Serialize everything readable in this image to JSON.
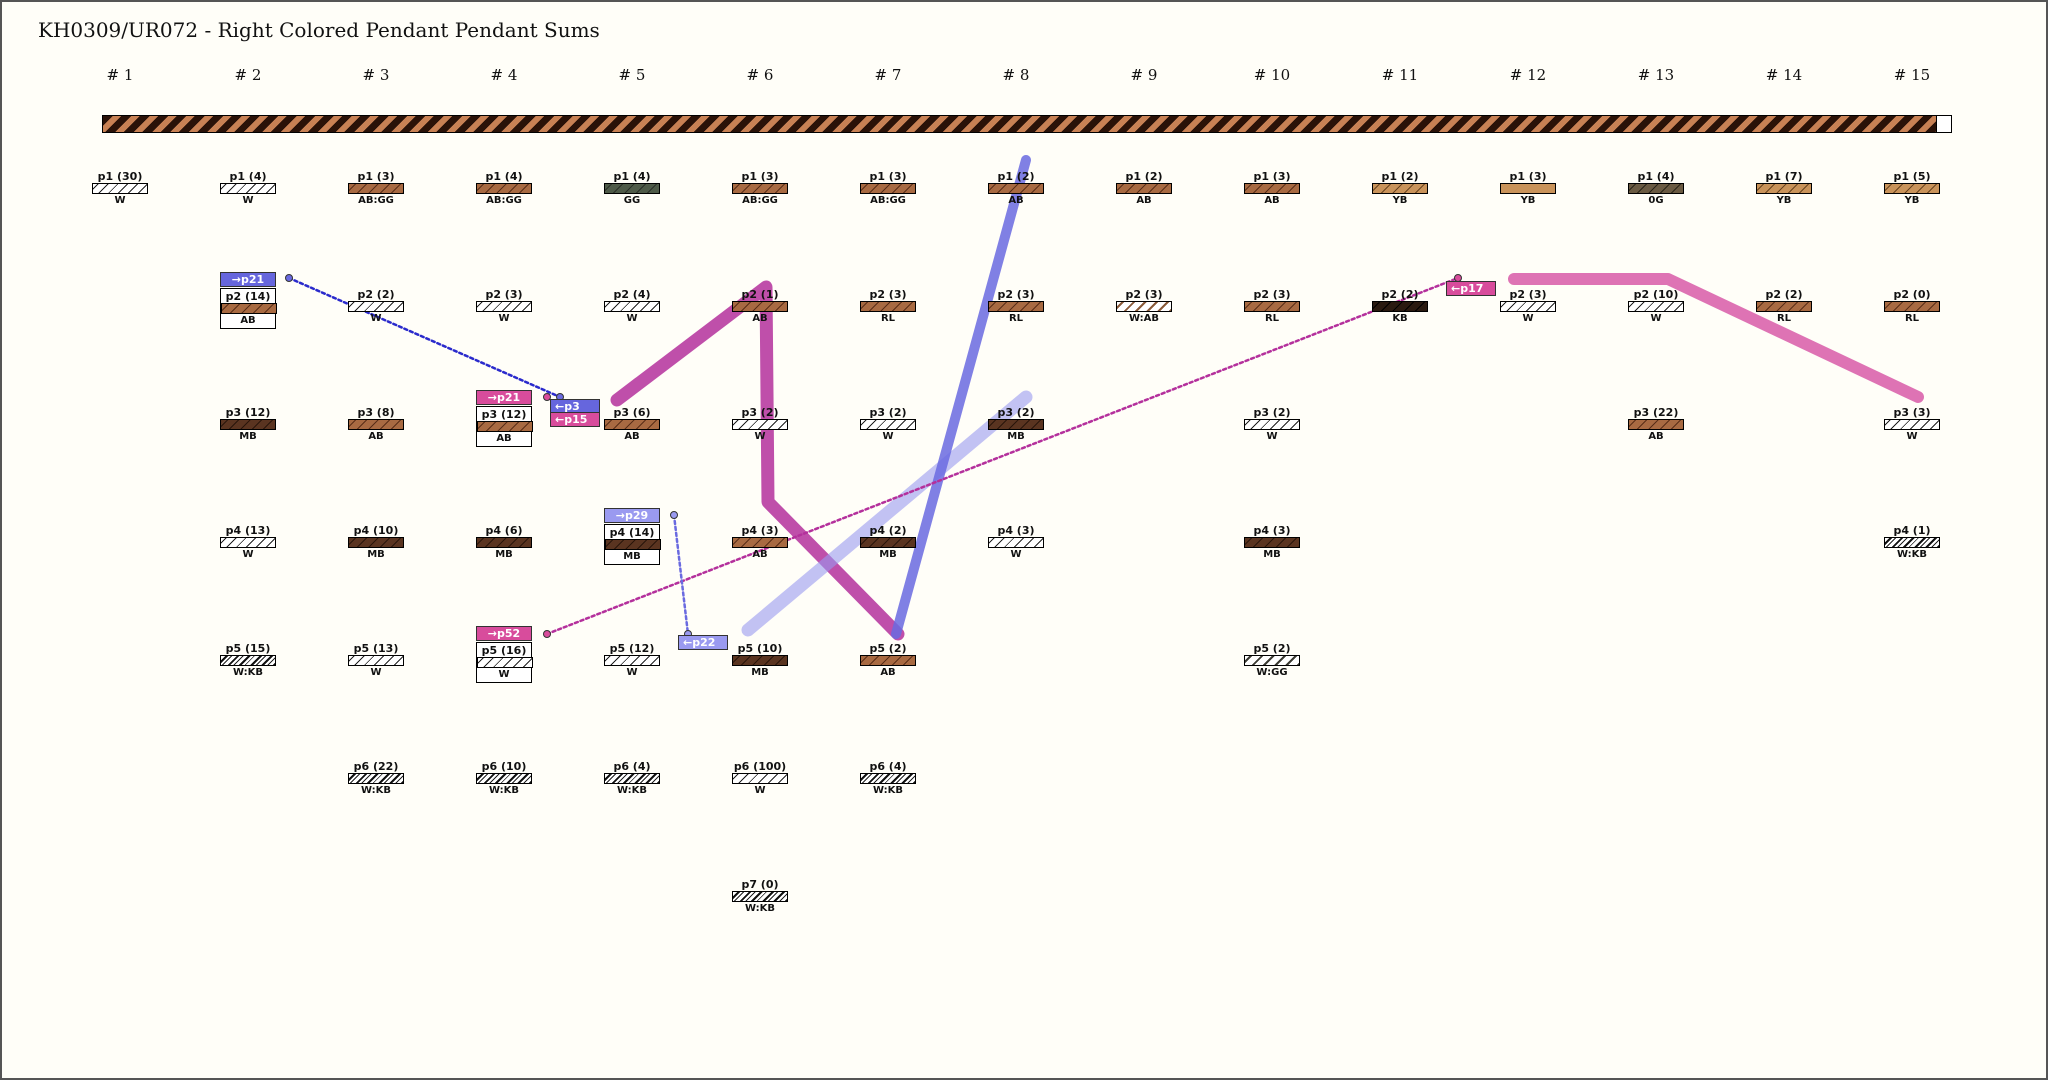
{
  "title": "KH0309/UR072 - Right Colored Pendant Pendant Sums",
  "columns": [
    "# 1",
    "# 2",
    "# 3",
    "# 4",
    "# 5",
    "# 6",
    "# 7",
    "# 8",
    "# 9",
    "# 10",
    "# 11",
    "# 12",
    "# 13",
    "# 14",
    "# 15"
  ],
  "pendants": [
    {
      "col": 1,
      "row": 1,
      "label": "p1 (30)",
      "code": "W",
      "pattern": "white"
    },
    {
      "col": 2,
      "row": 1,
      "label": "p1 (4)",
      "code": "W",
      "pattern": "white"
    },
    {
      "col": 2,
      "row": 2,
      "label": "p2 (14)",
      "code": "AB",
      "pattern": "ab",
      "boxed": true
    },
    {
      "col": 2,
      "row": 3,
      "label": "p3 (12)",
      "code": "MB",
      "pattern": "mb"
    },
    {
      "col": 2,
      "row": 4,
      "label": "p4 (13)",
      "code": "W",
      "pattern": "white"
    },
    {
      "col": 2,
      "row": 5,
      "label": "p5 (15)",
      "code": "W:KB",
      "pattern": "wkb"
    },
    {
      "col": 3,
      "row": 1,
      "label": "p1 (3)",
      "code": "AB:GG",
      "pattern": "ab"
    },
    {
      "col": 3,
      "row": 2,
      "label": "p2 (2)",
      "code": "W",
      "pattern": "white"
    },
    {
      "col": 3,
      "row": 3,
      "label": "p3 (8)",
      "code": "AB",
      "pattern": "ab"
    },
    {
      "col": 3,
      "row": 4,
      "label": "p4 (10)",
      "code": "MB",
      "pattern": "mb"
    },
    {
      "col": 3,
      "row": 5,
      "label": "p5 (13)",
      "code": "W",
      "pattern": "white"
    },
    {
      "col": 3,
      "row": 6,
      "label": "p6 (22)",
      "code": "W:KB",
      "pattern": "wkb"
    },
    {
      "col": 4,
      "row": 1,
      "label": "p1 (4)",
      "code": "AB:GG",
      "pattern": "ab"
    },
    {
      "col": 4,
      "row": 2,
      "label": "p2 (3)",
      "code": "W",
      "pattern": "white"
    },
    {
      "col": 4,
      "row": 3,
      "label": "p3 (12)",
      "code": "AB",
      "pattern": "ab",
      "boxed": true
    },
    {
      "col": 4,
      "row": 4,
      "label": "p4 (6)",
      "code": "MB",
      "pattern": "mb"
    },
    {
      "col": 4,
      "row": 5,
      "label": "p5 (16)",
      "code": "W",
      "pattern": "white",
      "boxed": true
    },
    {
      "col": 4,
      "row": 6,
      "label": "p6 (10)",
      "code": "W:KB",
      "pattern": "wkb"
    },
    {
      "col": 5,
      "row": 1,
      "label": "p1 (4)",
      "code": "GG",
      "pattern": "gg"
    },
    {
      "col": 5,
      "row": 2,
      "label": "p2 (4)",
      "code": "W",
      "pattern": "white"
    },
    {
      "col": 5,
      "row": 3,
      "label": "p3 (6)",
      "code": "AB",
      "pattern": "ab"
    },
    {
      "col": 5,
      "row": 4,
      "label": "p4 (14)",
      "code": "MB",
      "pattern": "mb",
      "boxed": true
    },
    {
      "col": 5,
      "row": 5,
      "label": "p5 (12)",
      "code": "W",
      "pattern": "white"
    },
    {
      "col": 5,
      "row": 6,
      "label": "p6 (4)",
      "code": "W:KB",
      "pattern": "wkb"
    },
    {
      "col": 6,
      "row": 1,
      "label": "p1 (3)",
      "code": "AB:GG",
      "pattern": "ab"
    },
    {
      "col": 6,
      "row": 2,
      "label": "p2 (1)",
      "code": "AB",
      "pattern": "ab"
    },
    {
      "col": 6,
      "row": 3,
      "label": "p3 (2)",
      "code": "W",
      "pattern": "white"
    },
    {
      "col": 6,
      "row": 4,
      "label": "p4 (3)",
      "code": "AB",
      "pattern": "ab"
    },
    {
      "col": 6,
      "row": 5,
      "label": "p5 (10)",
      "code": "MB",
      "pattern": "mb"
    },
    {
      "col": 6,
      "row": 6,
      "label": "p6 (100)",
      "code": "W",
      "pattern": "white"
    },
    {
      "col": 6,
      "row": 7,
      "label": "p7 (0)",
      "code": "W:KB",
      "pattern": "wkb"
    },
    {
      "col": 7,
      "row": 1,
      "label": "p1 (3)",
      "code": "AB:GG",
      "pattern": "ab"
    },
    {
      "col": 7,
      "row": 2,
      "label": "p2 (3)",
      "code": "RL",
      "pattern": "ab"
    },
    {
      "col": 7,
      "row": 3,
      "label": "p3 (2)",
      "code": "W",
      "pattern": "white"
    },
    {
      "col": 7,
      "row": 4,
      "label": "p4 (2)",
      "code": "MB",
      "pattern": "mb"
    },
    {
      "col": 7,
      "row": 5,
      "label": "p5 (2)",
      "code": "AB",
      "pattern": "ab"
    },
    {
      "col": 7,
      "row": 6,
      "label": "p6 (4)",
      "code": "W:KB",
      "pattern": "wkb"
    },
    {
      "col": 8,
      "row": 1,
      "label": "p1 (2)",
      "code": "AB",
      "pattern": "ab"
    },
    {
      "col": 8,
      "row": 2,
      "label": "p2 (3)",
      "code": "RL",
      "pattern": "ab"
    },
    {
      "col": 8,
      "row": 3,
      "label": "p3 (2)",
      "code": "MB",
      "pattern": "mb"
    },
    {
      "col": 8,
      "row": 4,
      "label": "p4 (3)",
      "code": "W",
      "pattern": "white"
    },
    {
      "col": 9,
      "row": 1,
      "label": "p1 (2)",
      "code": "AB",
      "pattern": "ab"
    },
    {
      "col": 9,
      "row": 2,
      "label": "p2 (3)",
      "code": "W:AB",
      "pattern": "wab"
    },
    {
      "col": 10,
      "row": 1,
      "label": "p1 (3)",
      "code": "AB",
      "pattern": "ab"
    },
    {
      "col": 10,
      "row": 2,
      "label": "p2 (3)",
      "code": "RL",
      "pattern": "ab"
    },
    {
      "col": 10,
      "row": 3,
      "label": "p3 (2)",
      "code": "W",
      "pattern": "white"
    },
    {
      "col": 10,
      "row": 4,
      "label": "p4 (3)",
      "code": "MB",
      "pattern": "mb"
    },
    {
      "col": 10,
      "row": 5,
      "label": "p5 (2)",
      "code": "W:GG",
      "pattern": "wgg"
    },
    {
      "col": 11,
      "row": 1,
      "label": "p1 (2)",
      "code": "YB",
      "pattern": "yb"
    },
    {
      "col": 11,
      "row": 2,
      "label": "p2 (2)",
      "code": "KB",
      "pattern": "kb"
    },
    {
      "col": 12,
      "row": 1,
      "label": "p1 (3)",
      "code": "YB",
      "pattern": "ybsolid"
    },
    {
      "col": 12,
      "row": 2,
      "label": "p2 (3)",
      "code": "W",
      "pattern": "white"
    },
    {
      "col": 13,
      "row": 1,
      "label": "p1 (4)",
      "code": "0G",
      "pattern": "og"
    },
    {
      "col": 13,
      "row": 2,
      "label": "p2 (10)",
      "code": "W",
      "pattern": "white"
    },
    {
      "col": 13,
      "row": 3,
      "label": "p3 (22)",
      "code": "AB",
      "pattern": "ab"
    },
    {
      "col": 14,
      "row": 1,
      "label": "p1 (7)",
      "code": "YB",
      "pattern": "yb"
    },
    {
      "col": 14,
      "row": 2,
      "label": "p2 (2)",
      "code": "RL",
      "pattern": "ab"
    },
    {
      "col": 15,
      "row": 1,
      "label": "p1 (5)",
      "code": "YB",
      "pattern": "yb"
    },
    {
      "col": 15,
      "row": 2,
      "label": "p2 (0)",
      "code": "RL",
      "pattern": "ab"
    },
    {
      "col": 15,
      "row": 3,
      "label": "p3 (3)",
      "code": "W",
      "pattern": "white"
    },
    {
      "col": 15,
      "row": 4,
      "label": "p4 (1)",
      "code": "W:KB",
      "pattern": "wkb"
    }
  ],
  "tags": [
    {
      "text": "→p21",
      "color": "#6666dd",
      "col": 2,
      "row": 2,
      "kind": "out"
    },
    {
      "text": "→p21",
      "color": "#d84c9c",
      "col": 4,
      "row": 3,
      "kind": "out"
    },
    {
      "text": "→p52",
      "color": "#d84c9c",
      "col": 4,
      "row": 5,
      "kind": "out"
    },
    {
      "text": "→p29",
      "color": "#9a9af0",
      "col": 5,
      "row": 4,
      "kind": "out"
    },
    {
      "text": "←p3",
      "color": "#6666dd",
      "col": 4.45,
      "row": 3,
      "kind": "in",
      "dy": -17
    },
    {
      "text": "←p15",
      "color": "#d84c9c",
      "col": 4.45,
      "row": 3,
      "kind": "in",
      "dy": -4
    },
    {
      "text": "←p22",
      "color": "#9a9af0",
      "col": 5.45,
      "row": 5,
      "kind": "in",
      "dy": -17
    },
    {
      "text": "←p17",
      "color": "#d84c9c",
      "col": 11.45,
      "row": 2,
      "kind": "in",
      "dy": -17
    }
  ],
  "colors": {
    "primary_dark": "#2a1208",
    "primary_light": "#c88154",
    "link_blue": "#6a6ae0",
    "link_blue_light": "#9a9af0",
    "link_magenta": "#b4309c",
    "link_pink": "#d85aa8"
  }
}
